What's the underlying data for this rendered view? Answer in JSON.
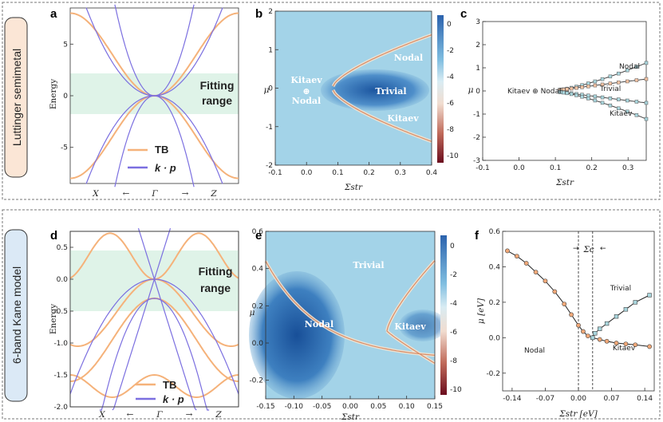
{
  "rows": [
    {
      "label": "Luttinger semimetal"
    },
    {
      "label": "6-band Kane model"
    }
  ],
  "colors": {
    "tb": "#f5b27a",
    "kp": "#7b6fe0",
    "fit_band": "#dff3e8",
    "bg_map": "#9fd0e6",
    "deep": "#1f5fa6",
    "line": "#e8b88a"
  },
  "chart_data": [
    {
      "id": "a",
      "type": "line",
      "ylabel": "Energy",
      "ylim": [
        -8.5,
        8.5
      ],
      "yticks": [
        "5",
        "0",
        "-5"
      ],
      "xticks": [
        "X",
        "←",
        "Γ",
        "→",
        "Z"
      ],
      "fit_range": [
        -2,
        2
      ],
      "fit_label": [
        "Fitting",
        "range"
      ],
      "series": [
        {
          "name": "TB"
        },
        {
          "name": "k · p"
        }
      ]
    },
    {
      "id": "b",
      "type": "heatmap",
      "xlabel": "Σstr",
      "ylabel": "μ",
      "xlim": [
        -0.1,
        0.4
      ],
      "ylim": [
        -2,
        2
      ],
      "xticks": [
        "-0.1",
        "0.0",
        "0.1",
        "0.2",
        "0.3",
        "0.4"
      ],
      "yticks": [
        "2",
        "1",
        "0",
        "-1",
        "-2"
      ],
      "colorbar_ticks": [
        "0",
        "-2",
        "-4",
        "-6",
        "-8",
        "-10"
      ],
      "labels": {
        "kitaev_top": "Kitaev",
        "oplus": "⊕",
        "nodal_left": "Nodal",
        "nodal": "Nodal",
        "trivial": "Trivial",
        "kitaev": "Kitaev"
      }
    },
    {
      "id": "c",
      "type": "line",
      "xlabel": "Σstr",
      "ylabel": "μ",
      "xlim": [
        -0.1,
        0.35
      ],
      "ylim": [
        -3,
        3
      ],
      "xticks": [
        "-0.1",
        "0.0",
        "0.1",
        "0.2",
        "0.3"
      ],
      "yticks": [
        "3",
        "2",
        "1",
        "0",
        "-1",
        "-2",
        "-3"
      ],
      "labels": {
        "left": "Kitaev ⊕ Nodal",
        "nodal": "Nodal",
        "trivial": "Trivial",
        "kitaev": "Kitaev"
      }
    },
    {
      "id": "d",
      "type": "line",
      "ylabel": "Energy",
      "ylim": [
        -2.0,
        0.75
      ],
      "yticks": [
        "0.5",
        "0.0",
        "-0.5",
        "-1.0",
        "-1.5",
        "-2.0"
      ],
      "xticks": [
        "X",
        "←",
        "Γ",
        "→",
        "Z"
      ],
      "fit_range": [
        -0.5,
        0.45
      ],
      "fit_label": [
        "Fitting",
        "range"
      ],
      "series": [
        {
          "name": "TB"
        },
        {
          "name": "k · p"
        }
      ]
    },
    {
      "id": "e",
      "type": "heatmap",
      "xlabel": "Σstr",
      "ylabel": "μ",
      "xlim": [
        -0.15,
        0.15
      ],
      "ylim": [
        -0.3,
        0.6
      ],
      "xticks": [
        "-0.15",
        "-0.10",
        "-0.05",
        "0.00",
        "0.05",
        "0.10",
        "0.15"
      ],
      "yticks": [
        "0.6",
        "0.4",
        "0.2",
        "0.0",
        "-0.2"
      ],
      "colorbar_ticks": [
        "0",
        "-2",
        "-4",
        "-6",
        "-8",
        "-10"
      ],
      "labels": {
        "trivial": "Trivial",
        "nodal": "Nodal",
        "kitaev": "Kitaev"
      }
    },
    {
      "id": "f",
      "type": "scatter",
      "xlabel": "Σstr [eV]",
      "ylabel": "μ [eV]",
      "xlim": [
        -0.16,
        0.16
      ],
      "ylim": [
        -0.3,
        0.6
      ],
      "xticks": [
        "-0.14",
        "-0.07",
        "0.00",
        "0.07",
        "0.14"
      ],
      "yticks": [
        "0.6",
        "0.4",
        "0.2",
        "0.0",
        "-0.2"
      ],
      "sigma_c": "Σc",
      "labels": {
        "trivial": "Trivial",
        "nodal": "Nodal",
        "kitaev": "Kitaev"
      },
      "orange_x": [
        -0.15,
        -0.13,
        -0.11,
        -0.09,
        -0.07,
        -0.05,
        -0.03,
        -0.015,
        0.0,
        0.01,
        0.02,
        0.03,
        0.045,
        0.06,
        0.08,
        0.1,
        0.12,
        0.15
      ],
      "orange_y": [
        0.49,
        0.46,
        0.42,
        0.37,
        0.32,
        0.26,
        0.19,
        0.13,
        0.07,
        0.035,
        0.01,
        0.0,
        -0.01,
        -0.02,
        -0.03,
        -0.035,
        -0.04,
        -0.05
      ],
      "cyan_x": [
        0.03,
        0.035,
        0.045,
        0.06,
        0.08,
        0.1,
        0.12,
        0.15
      ],
      "cyan_y": [
        0.0,
        0.025,
        0.05,
        0.08,
        0.12,
        0.16,
        0.2,
        0.24
      ]
    }
  ]
}
